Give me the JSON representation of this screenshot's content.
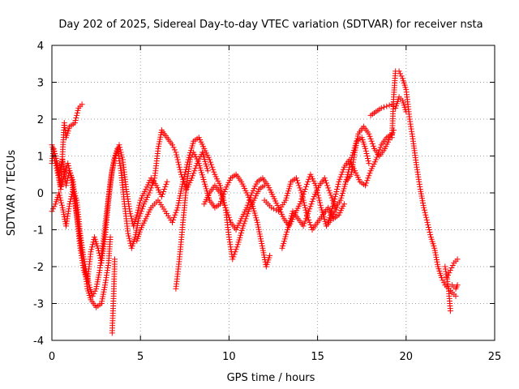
{
  "chart_data": {
    "type": "scatter",
    "title": "Day 202 of 2025, Sidereal Day-to-day VTEC variation (SDTVAR) for receiver nsta",
    "xlabel": "GPS time / hours",
    "ylabel": "SDTVAR / TECUs",
    "xlim": [
      0,
      25
    ],
    "ylim": [
      -4,
      4
    ],
    "xticks": [
      "0",
      "5",
      "10",
      "15",
      "20",
      "25"
    ],
    "yticks": [
      "-4",
      "-3",
      "-2",
      "-1",
      "0",
      "1",
      "2",
      "3",
      "4"
    ],
    "grid": true,
    "marker": "+",
    "series": [
      {
        "name": "SDTVAR",
        "color": "#ff0000",
        "tracks": [
          [
            [
              0,
              0.8
            ],
            [
              0.1,
              1.2
            ],
            [
              0.3,
              0.8
            ],
            [
              0.5,
              0.2
            ],
            [
              0.7,
              1.9
            ],
            [
              0.8,
              1.5
            ],
            [
              1.0,
              1.8
            ],
            [
              1.3,
              1.9
            ],
            [
              1.5,
              2.3
            ],
            [
              1.7,
              2.4
            ]
          ],
          [
            [
              0,
              -0.5
            ],
            [
              0.2,
              -0.3
            ],
            [
              0.4,
              0.0
            ],
            [
              0.6,
              -0.4
            ],
            [
              0.8,
              -0.9
            ],
            [
              1.0,
              -0.3
            ],
            [
              1.2,
              0.1
            ],
            [
              1.4,
              -0.2
            ],
            [
              1.6,
              -1.1
            ],
            [
              1.8,
              -1.8
            ],
            [
              2.0,
              -2.6
            ],
            [
              2.2,
              -2.9
            ],
            [
              2.5,
              -3.1
            ],
            [
              2.8,
              -3.0
            ],
            [
              3.0,
              -2.5
            ],
            [
              3.2,
              -1.9
            ],
            [
              3.3,
              -1.2
            ]
          ],
          [
            [
              0,
              1.3
            ],
            [
              0.2,
              1.0
            ],
            [
              0.4,
              0.5
            ],
            [
              0.6,
              0.9
            ],
            [
              0.8,
              0.2
            ],
            [
              1.0,
              0.6
            ],
            [
              1.2,
              0.3
            ],
            [
              1.4,
              -0.6
            ],
            [
              1.6,
              -1.5
            ],
            [
              1.8,
              -2.1
            ],
            [
              2.0,
              -2.4
            ],
            [
              2.2,
              -1.6
            ],
            [
              2.4,
              -1.2
            ],
            [
              2.6,
              -1.5
            ],
            [
              2.8,
              -1.9
            ],
            [
              3.0,
              -1.2
            ],
            [
              3.2,
              -0.2
            ],
            [
              3.4,
              0.6
            ],
            [
              3.6,
              1.0
            ],
            [
              3.8,
              1.3
            ],
            [
              4.0,
              0.9
            ],
            [
              4.2,
              0.1
            ],
            [
              4.4,
              -0.5
            ],
            [
              4.6,
              -0.9
            ],
            [
              4.8,
              -0.6
            ],
            [
              5.0,
              -0.2
            ],
            [
              5.3,
              0.1
            ],
            [
              5.6,
              0.4
            ],
            [
              5.9,
              0.2
            ],
            [
              6.2,
              -0.1
            ],
            [
              6.5,
              0.3
            ]
          ],
          [
            [
              0.1,
              1.0
            ],
            [
              0.3,
              0.6
            ],
            [
              0.5,
              0.1
            ],
            [
              0.7,
              0.5
            ],
            [
              0.9,
              0.8
            ],
            [
              1.1,
              0.4
            ],
            [
              1.3,
              -0.3
            ],
            [
              1.5,
              -0.9
            ],
            [
              1.7,
              -1.6
            ],
            [
              1.9,
              -2.0
            ],
            [
              2.1,
              -2.5
            ],
            [
              2.3,
              -2.8
            ],
            [
              2.5,
              -2.6
            ],
            [
              2.7,
              -2.1
            ],
            [
              2.9,
              -1.3
            ],
            [
              3.1,
              -0.5
            ],
            [
              3.3,
              0.3
            ],
            [
              3.5,
              0.9
            ],
            [
              3.7,
              1.2
            ],
            [
              3.9,
              0.6
            ],
            [
              4.1,
              -0.3
            ],
            [
              4.3,
              -1.1
            ],
            [
              4.5,
              -1.5
            ],
            [
              4.7,
              -1.2
            ],
            [
              4.9,
              -0.7
            ],
            [
              5.2,
              -0.3
            ],
            [
              5.5,
              0.0
            ],
            [
              5.8,
              0.4
            ],
            [
              6.0,
              1.2
            ],
            [
              6.2,
              1.7
            ],
            [
              6.5,
              1.5
            ],
            [
              6.8,
              1.3
            ],
            [
              7.0,
              1.1
            ],
            [
              7.3,
              0.5
            ],
            [
              7.6,
              0.1
            ],
            [
              7.9,
              0.4
            ],
            [
              8.2,
              0.8
            ],
            [
              8.5,
              1.1
            ],
            [
              8.8,
              0.6
            ]
          ],
          [
            [
              3.4,
              -3.8
            ],
            [
              3.45,
              -3.2
            ],
            [
              3.5,
              -2.6
            ],
            [
              3.55,
              -1.8
            ]
          ],
          [
            [
              4.8,
              -1.3
            ],
            [
              5.0,
              -1.0
            ],
            [
              5.3,
              -0.7
            ],
            [
              5.6,
              -0.4
            ],
            [
              6.0,
              -0.2
            ],
            [
              6.4,
              -0.5
            ],
            [
              6.8,
              -0.8
            ],
            [
              7.1,
              -0.4
            ],
            [
              7.4,
              0.3
            ],
            [
              7.7,
              0.9
            ],
            [
              8.0,
              1.4
            ],
            [
              8.3,
              1.5
            ],
            [
              8.6,
              1.2
            ],
            [
              8.9,
              0.9
            ],
            [
              9.2,
              0.5
            ],
            [
              9.5,
              0.2
            ],
            [
              9.8,
              -0.4
            ],
            [
              10.0,
              -1.2
            ],
            [
              10.2,
              -1.8
            ],
            [
              10.5,
              -1.4
            ],
            [
              10.8,
              -0.9
            ],
            [
              11.1,
              -0.5
            ],
            [
              11.4,
              -0.2
            ],
            [
              11.7,
              0.1
            ],
            [
              12.0,
              0.2
            ]
          ],
          [
            [
              7.0,
              -2.6
            ],
            [
              7.2,
              -1.8
            ],
            [
              7.4,
              -0.8
            ],
            [
              7.6,
              0.2
            ],
            [
              7.8,
              0.9
            ],
            [
              8.0,
              1.1
            ],
            [
              8.3,
              0.8
            ],
            [
              8.6,
              0.3
            ],
            [
              8.9,
              -0.2
            ],
            [
              9.2,
              -0.4
            ],
            [
              9.5,
              -0.3
            ],
            [
              9.8,
              0.1
            ],
            [
              10.1,
              0.4
            ],
            [
              10.4,
              0.5
            ],
            [
              10.7,
              0.3
            ],
            [
              11.0,
              0.0
            ],
            [
              11.3,
              -0.3
            ],
            [
              11.6,
              -0.8
            ],
            [
              11.9,
              -1.5
            ],
            [
              12.1,
              -2.0
            ],
            [
              12.3,
              -1.7
            ]
          ],
          [
            [
              8.6,
              -0.3
            ],
            [
              8.9,
              0.0
            ],
            [
              9.2,
              0.2
            ],
            [
              9.5,
              0.0
            ],
            [
              9.8,
              -0.4
            ],
            [
              10.1,
              -0.8
            ],
            [
              10.4,
              -1.0
            ],
            [
              10.7,
              -0.7
            ],
            [
              11.0,
              -0.4
            ],
            [
              11.3,
              0.0
            ],
            [
              11.6,
              0.3
            ],
            [
              11.9,
              0.4
            ],
            [
              12.2,
              0.2
            ],
            [
              12.5,
              -0.1
            ],
            [
              12.8,
              -0.4
            ],
            [
              13.1,
              -0.7
            ],
            [
              13.4,
              -0.9
            ],
            [
              13.7,
              -0.6
            ],
            [
              14.0,
              -0.3
            ],
            [
              14.3,
              0.1
            ],
            [
              14.6,
              0.5
            ],
            [
              14.9,
              0.2
            ],
            [
              15.2,
              -0.4
            ],
            [
              15.5,
              -0.9
            ],
            [
              15.8,
              -0.7
            ],
            [
              16.1,
              -0.4
            ]
          ],
          [
            [
              12.0,
              -0.2
            ],
            [
              12.4,
              -0.4
            ],
            [
              12.8,
              -0.5
            ],
            [
              13.2,
              -0.2
            ],
            [
              13.5,
              0.3
            ],
            [
              13.8,
              0.4
            ],
            [
              14.1,
              0.0
            ],
            [
              14.4,
              -0.6
            ],
            [
              14.7,
              -1.0
            ],
            [
              15.0,
              -0.8
            ],
            [
              15.3,
              -0.6
            ],
            [
              15.6,
              -0.4
            ],
            [
              15.9,
              -0.7
            ],
            [
              16.2,
              -0.6
            ],
            [
              16.5,
              -0.3
            ]
          ],
          [
            [
              13.0,
              -1.5
            ],
            [
              13.3,
              -1.0
            ],
            [
              13.6,
              -0.5
            ],
            [
              13.9,
              -0.7
            ],
            [
              14.2,
              -0.9
            ],
            [
              14.5,
              -0.5
            ],
            [
              14.8,
              -0.1
            ],
            [
              15.1,
              0.2
            ],
            [
              15.4,
              0.4
            ],
            [
              15.7,
              0.0
            ],
            [
              16.0,
              -0.4
            ],
            [
              16.3,
              -0.2
            ],
            [
              16.6,
              0.3
            ],
            [
              16.9,
              0.9
            ],
            [
              17.2,
              1.4
            ],
            [
              17.5,
              1.5
            ],
            [
              17.7,
              1.2
            ],
            [
              17.9,
              0.8
            ]
          ],
          [
            [
              15.6,
              -0.8
            ],
            [
              15.9,
              -0.3
            ],
            [
              16.2,
              0.3
            ],
            [
              16.5,
              0.7
            ],
            [
              16.8,
              0.9
            ],
            [
              17.1,
              0.6
            ],
            [
              17.4,
              0.3
            ],
            [
              17.7,
              0.2
            ],
            [
              18.0,
              0.6
            ],
            [
              18.3,
              0.9
            ],
            [
              18.6,
              1.3
            ],
            [
              18.9,
              1.5
            ],
            [
              19.2,
              1.6
            ]
          ],
          [
            [
              16.6,
              0.3
            ],
            [
              16.9,
              0.5
            ],
            [
              17.1,
              1.1
            ],
            [
              17.3,
              1.6
            ],
            [
              17.6,
              1.8
            ],
            [
              17.9,
              1.6
            ],
            [
              18.2,
              1.2
            ],
            [
              18.5,
              1.0
            ],
            [
              18.8,
              1.2
            ],
            [
              19.1,
              1.5
            ],
            [
              19.3,
              1.7
            ]
          ],
          [
            [
              18.0,
              2.1
            ],
            [
              18.3,
              2.2
            ],
            [
              18.6,
              2.3
            ],
            [
              18.9,
              2.35
            ],
            [
              19.2,
              2.4
            ],
            [
              19.4,
              2.3
            ],
            [
              19.6,
              2.6
            ],
            [
              19.8,
              2.5
            ],
            [
              20.0,
              2.2
            ]
          ],
          [
            [
              19.2,
              1.5
            ],
            [
              19.3,
              2.6
            ],
            [
              19.4,
              3.3
            ],
            [
              19.6,
              3.3
            ],
            [
              19.8,
              3.1
            ],
            [
              20.0,
              2.8
            ],
            [
              20.2,
              2.0
            ],
            [
              20.4,
              1.4
            ],
            [
              20.6,
              0.7
            ],
            [
              20.8,
              0.1
            ],
            [
              21.0,
              -0.4
            ],
            [
              21.2,
              -0.8
            ],
            [
              21.4,
              -1.2
            ],
            [
              21.6,
              -1.5
            ],
            [
              21.8,
              -2.0
            ],
            [
              22.0,
              -2.3
            ],
            [
              22.2,
              -2.5
            ],
            [
              22.4,
              -2.6
            ],
            [
              22.6,
              -2.7
            ],
            [
              22.8,
              -2.8
            ]
          ],
          [
            [
              22.2,
              -2.0
            ],
            [
              22.4,
              -2.6
            ],
            [
              22.5,
              -3.2
            ]
          ],
          [
            [
              22.3,
              -2.3
            ],
            [
              22.5,
              -2.1
            ],
            [
              22.7,
              -1.9
            ],
            [
              22.9,
              -1.8
            ]
          ],
          [
            [
              22.6,
              -2.5
            ],
            [
              22.8,
              -2.6
            ],
            [
              22.9,
              -2.5
            ]
          ]
        ]
      }
    ]
  }
}
